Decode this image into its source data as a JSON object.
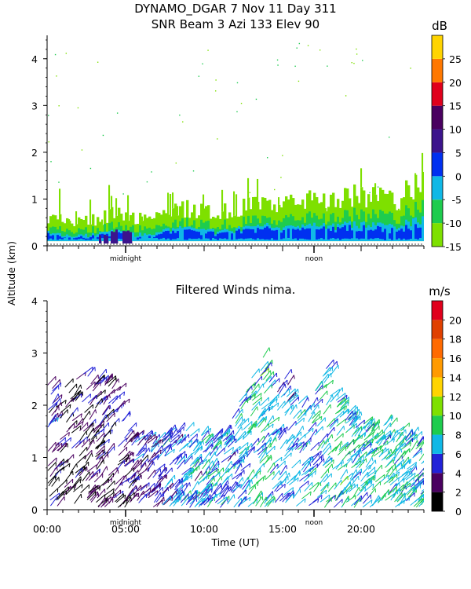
{
  "header": {
    "title_line1": "DYNAMO_DGAR    7 Nov 11 Day 311",
    "title_line2": "SNR Beam 3 Azi 133 Elev 90"
  },
  "y_axis_label": "Altitude (km)",
  "chart_data": [
    {
      "id": "snr",
      "type": "heatmap",
      "title": "SNR Beam 3 Azi 133 Elev 90",
      "xlabel": "",
      "ylabel": "Altitude (km)",
      "xlim": [
        0,
        24
      ],
      "ylim": [
        0,
        4.5
      ],
      "y_ticks": [
        0,
        1,
        2,
        3,
        4
      ],
      "x_markers": [
        {
          "x": 5,
          "label": "midnight"
        },
        {
          "x": 17,
          "label": "noon"
        }
      ],
      "colorbar": {
        "unit": "dB",
        "range": [
          -15,
          30
        ],
        "ticks": [
          -15,
          -10,
          -5,
          0,
          5,
          10,
          15,
          20,
          25
        ],
        "bands": [
          {
            "from": -15,
            "to": -10,
            "color": "#7ee000"
          },
          {
            "from": -10,
            "to": -5,
            "color": "#1ecc4e"
          },
          {
            "from": -5,
            "to": 0,
            "color": "#10b8e6"
          },
          {
            "from": 0,
            "to": 5,
            "color": "#0030f0"
          },
          {
            "from": 5,
            "to": 10,
            "color": "#3c148c"
          },
          {
            "from": 10,
            "to": 15,
            "color": "#4a0060"
          },
          {
            "from": 15,
            "to": 20,
            "color": "#e0001c"
          },
          {
            "from": 20,
            "to": 25,
            "color": "#ff7800"
          },
          {
            "from": 25,
            "to": 30,
            "color": "#ffd400"
          }
        ]
      },
      "echo_top_km": [
        0.65,
        0.55,
        0.5,
        0.55,
        0.6,
        0.7,
        0.6,
        0.55,
        0.65,
        0.75,
        0.8,
        0.75,
        0.7,
        0.75,
        0.85,
        0.9,
        0.95,
        0.9,
        0.85,
        1.0,
        0.95,
        1.0,
        1.05,
        1.1,
        1.0,
        0.95,
        1.2,
        1.6
      ],
      "strong_layer_top_km": [
        0.28,
        0.22,
        0.2,
        0.22,
        0.26,
        0.3,
        0.25,
        0.22,
        0.28,
        0.35,
        0.38,
        0.33,
        0.3,
        0.32,
        0.36,
        0.4,
        0.42,
        0.38,
        0.36,
        0.44,
        0.4,
        0.42,
        0.45,
        0.46,
        0.4,
        0.38,
        0.48,
        0.55
      ],
      "intense_segment": {
        "x": [
          3.3,
          5.6
        ],
        "ylim": [
          0.05,
          0.35
        ]
      }
    },
    {
      "id": "winds",
      "type": "scatter",
      "title": "Filtered Winds nima.",
      "xlabel": "Time (UT)",
      "ylabel": "Altitude (km)",
      "xlim": [
        0,
        24
      ],
      "ylim": [
        0,
        4
      ],
      "x_ticks": [
        {
          "value": 0,
          "label": "00:00"
        },
        {
          "value": 5,
          "label": "05:00"
        },
        {
          "value": 10,
          "label": "10:00"
        },
        {
          "value": 15,
          "label": "15:00"
        },
        {
          "value": 20,
          "label": "20:00"
        }
      ],
      "y_ticks": [
        0,
        1,
        2,
        3,
        4
      ],
      "x_markers": [
        {
          "x": 5,
          "label": "midnight"
        },
        {
          "x": 17,
          "label": "noon"
        }
      ],
      "colorbar": {
        "unit": "m/s",
        "range": [
          0,
          22
        ],
        "ticks": [
          0,
          2,
          4,
          6,
          8,
          10,
          12,
          14,
          16,
          18,
          20
        ],
        "bands": [
          {
            "from": 0,
            "to": 2,
            "color": "#000000"
          },
          {
            "from": 2,
            "to": 4,
            "color": "#4a0060"
          },
          {
            "from": 4,
            "to": 6,
            "color": "#2222d8"
          },
          {
            "from": 6,
            "to": 8,
            "color": "#10b8e6"
          },
          {
            "from": 8,
            "to": 10,
            "color": "#1ecc4e"
          },
          {
            "from": 10,
            "to": 12,
            "color": "#7ee000"
          },
          {
            "from": 12,
            "to": 14,
            "color": "#ffd400"
          },
          {
            "from": 14,
            "to": 16,
            "color": "#ff9a00"
          },
          {
            "from": 16,
            "to": 18,
            "color": "#ff6a00"
          },
          {
            "from": 18,
            "to": 20,
            "color": "#e04000"
          },
          {
            "from": 20,
            "to": 22,
            "color": "#e0001c"
          }
        ]
      },
      "wind_coverage_top_km": [
        2.4,
        2.2,
        2.6,
        2.4,
        2.5,
        1.4,
        1.3,
        1.4,
        1.5,
        1.4,
        1.3,
        1.5,
        2.2,
        2.8,
        2.7,
        2.1,
        1.9,
        2.8,
        2.1,
        1.6,
        1.5,
        1.6,
        1.5,
        1.2
      ],
      "wind_speed_ms": [
        4,
        3,
        3,
        3,
        4,
        4,
        5,
        6,
        6,
        6,
        7,
        6,
        7,
        8,
        6,
        6,
        7,
        7,
        8,
        7,
        8,
        8,
        7,
        8
      ]
    }
  ]
}
